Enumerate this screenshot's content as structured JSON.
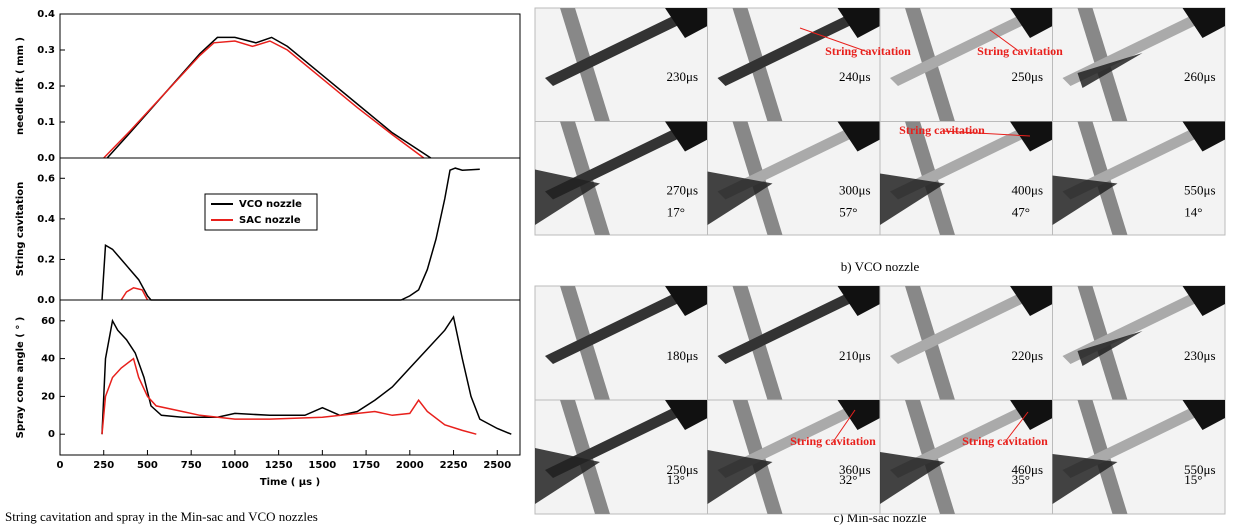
{
  "chart_data": [
    {
      "type": "line",
      "ylabel": "needle lift ( mm )",
      "xlim": [
        0,
        2630
      ],
      "ylim": [
        0,
        0.4
      ],
      "yticks": [
        {
          "value": 0,
          "label": "0.0"
        },
        {
          "value": 0.1,
          "label": "0.1"
        },
        {
          "value": 0.2,
          "label": "0.2"
        },
        {
          "value": 0.3,
          "label": "0.3"
        },
        {
          "value": 0.4,
          "label": "0.4"
        }
      ],
      "series": [
        {
          "color": "#000000",
          "x": [
            270,
            400,
            600,
            800,
            900,
            1000,
            1120,
            1210,
            1300,
            1500,
            1700,
            1900,
            2120
          ],
          "values": [
            0,
            0.07,
            0.18,
            0.29,
            0.335,
            0.335,
            0.32,
            0.335,
            0.31,
            0.23,
            0.15,
            0.07,
            0
          ]
        },
        {
          "color": "#e8201c",
          "x": [
            250,
            400,
            600,
            800,
            880,
            1000,
            1100,
            1200,
            1300,
            1500,
            1700,
            1900,
            2080
          ],
          "values": [
            0,
            0.075,
            0.18,
            0.285,
            0.32,
            0.325,
            0.31,
            0.325,
            0.3,
            0.22,
            0.14,
            0.065,
            0
          ]
        }
      ]
    },
    {
      "type": "line",
      "ylabel": "String cavitation",
      "legend": "center",
      "xlim": [
        0,
        2630
      ],
      "ylim": [
        0,
        0.7
      ],
      "yticks": [
        {
          "value": 0,
          "label": "0.0"
        },
        {
          "value": 0.2,
          "label": "0.2"
        },
        {
          "value": 0.4,
          "label": "0.4"
        },
        {
          "value": 0.6,
          "label": "0.6"
        }
      ],
      "series": [
        {
          "name": "VCO nozzle",
          "color": "#000000",
          "x": [
            240,
            260,
            300,
            350,
            400,
            450,
            500,
            520,
            1950,
            2000,
            2050,
            2100,
            2150,
            2200,
            2230,
            2260,
            2300,
            2400
          ],
          "values": [
            0,
            0.27,
            0.25,
            0.2,
            0.15,
            0.1,
            0.02,
            0,
            0,
            0.02,
            0.05,
            0.15,
            0.3,
            0.5,
            0.64,
            0.65,
            0.64,
            0.645
          ]
        },
        {
          "name": "SAC nozzle",
          "color": "#e8201c",
          "x": [
            350,
            380,
            420,
            470,
            500
          ],
          "values": [
            0,
            0.04,
            0.06,
            0.05,
            0
          ]
        }
      ]
    },
    {
      "type": "line",
      "ylabel": "Spray cone angle ( ° )",
      "xlabel": "Time ( μs )",
      "xlim": [
        0,
        2630
      ],
      "ylim": [
        -11,
        71
      ],
      "xticks": [
        0,
        250,
        500,
        750,
        1000,
        1250,
        1500,
        1750,
        2000,
        2250,
        2500
      ],
      "yticks": [
        0,
        20,
        40,
        60
      ],
      "series": [
        {
          "color": "#000000",
          "x": [
            240,
            260,
            300,
            330,
            380,
            430,
            480,
            520,
            580,
            700,
            900,
            1000,
            1200,
            1400,
            1500,
            1600,
            1700,
            1800,
            1900,
            2000,
            2100,
            2200,
            2250,
            2300,
            2350,
            2400,
            2500,
            2580
          ],
          "values": [
            0,
            40,
            60,
            55,
            50,
            43,
            30,
            15,
            10,
            9,
            9,
            11,
            10,
            10,
            14,
            10,
            12,
            18,
            25,
            35,
            45,
            55,
            62,
            40,
            20,
            8,
            3,
            0
          ]
        },
        {
          "color": "#e8201c",
          "x": [
            240,
            260,
            300,
            350,
            420,
            450,
            500,
            550,
            700,
            800,
            1000,
            1200,
            1500,
            1800,
            1900,
            2000,
            2050,
            2100,
            2200,
            2300,
            2380
          ],
          "values": [
            0,
            20,
            30,
            35,
            40,
            30,
            20,
            15,
            12,
            10,
            8,
            8,
            9,
            12,
            10,
            11,
            18,
            12,
            5,
            2,
            0
          ]
        }
      ]
    }
  ],
  "left_caption": "String cavitation and spray in the Min-sac and VCO nozzles",
  "vco": {
    "caption": "b) VCO nozzle",
    "frames": [
      {
        "time": "230μs"
      },
      {
        "time": "240μs"
      },
      {
        "time": "250μs"
      },
      {
        "time": "260μs"
      },
      {
        "time": "270μs",
        "angle": "17°"
      },
      {
        "time": "300μs",
        "angle": "57°"
      },
      {
        "time": "400μs",
        "angle": "47°"
      },
      {
        "time": "550μs",
        "angle": "14°"
      }
    ],
    "annotations": [
      "String cavitation",
      "String cavitation",
      "String cavitation"
    ]
  },
  "minsac": {
    "caption": "c) Min-sac nozzle",
    "frames": [
      {
        "time": "180μs"
      },
      {
        "time": "210μs"
      },
      {
        "time": "220μs"
      },
      {
        "time": "230μs"
      },
      {
        "time": "250μs",
        "angle": "13°"
      },
      {
        "time": "360μs",
        "angle": "32°"
      },
      {
        "time": "460μs",
        "angle": "35°"
      },
      {
        "time": "550μs",
        "angle": "15°"
      }
    ],
    "annotations": [
      "String cavitation",
      "String cavitation"
    ]
  }
}
